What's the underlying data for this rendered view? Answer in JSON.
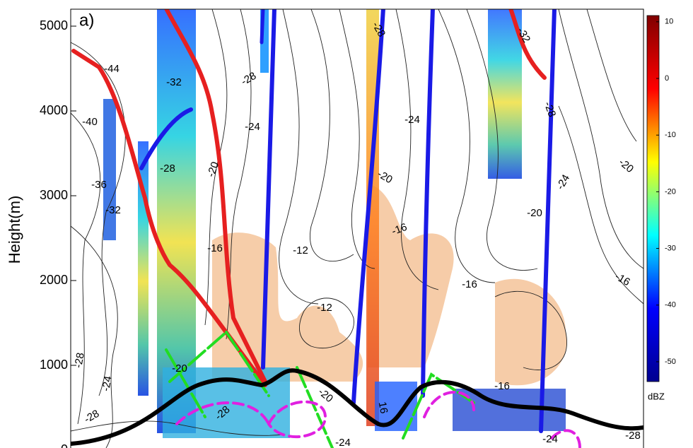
{
  "chart_data": {
    "type": "contour",
    "panel_label": "a)",
    "y_label": "Height(m)",
    "ylim": [
      0,
      5200
    ],
    "yticks": [
      0,
      1000,
      2000,
      3000,
      4000,
      5000
    ],
    "colorbar": {
      "label": "dBZ",
      "clim": [
        -53.5,
        11.1
      ],
      "ticks": [
        10,
        0,
        -10,
        -20,
        -30,
        -40,
        -50
      ],
      "colors": [
        "#00008f",
        "#0000ff",
        "#00ffff",
        "#ffff00",
        "#ff0000",
        "#800000"
      ]
    },
    "contour_labels": [
      "-44",
      "-40",
      "-36",
      "-32",
      "-32",
      "-28",
      "-20",
      "-28",
      "-24",
      "-16",
      "-12",
      "-28",
      "-24",
      "-28",
      "-20",
      "-12",
      "-20",
      "-24",
      "-28",
      "-24",
      "-20",
      "-16",
      "-16",
      "16",
      "-32",
      "-28",
      "-24",
      "-20",
      "-20",
      "-16",
      "-16",
      "-28",
      "-24",
      "-28"
    ]
  }
}
